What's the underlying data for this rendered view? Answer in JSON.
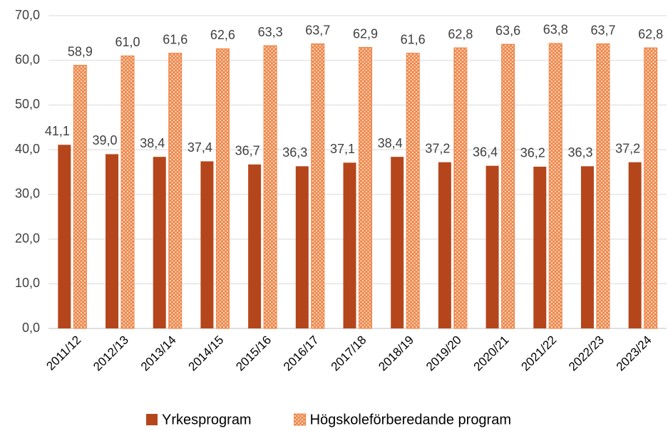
{
  "chart_data": {
    "type": "bar",
    "categories": [
      "2011/12",
      "2012/13",
      "2013/14",
      "2014/15",
      "2015/16",
      "2016/17",
      "2017/18",
      "2018/19",
      "2019/20",
      "2020/21",
      "2021/22",
      "2022/23",
      "2023/24"
    ],
    "series": [
      {
        "name": "Yrkesprogram",
        "color": "#b5461c",
        "pattern": false,
        "values": [
          41.1,
          39.0,
          38.4,
          37.4,
          36.7,
          36.3,
          37.1,
          38.4,
          37.2,
          36.4,
          36.2,
          36.3,
          37.2
        ],
        "value_labels": [
          "41,1",
          "39,0",
          "38,4",
          "37,4",
          "36,7",
          "36,3",
          "37,1",
          "38,4",
          "37,2",
          "36,4",
          "36,2",
          "36,3",
          "37,2"
        ]
      },
      {
        "name": "Högskoleförberedande program",
        "color": "#ef8547",
        "pattern": true,
        "values": [
          58.9,
          61.0,
          61.6,
          62.6,
          63.3,
          63.7,
          62.9,
          61.6,
          62.8,
          63.6,
          63.8,
          63.7,
          62.8
        ],
        "value_labels": [
          "58,9",
          "61,0",
          "61,6",
          "62,6",
          "63,3",
          "63,7",
          "62,9",
          "61,6",
          "62,8",
          "63,6",
          "63,8",
          "63,7",
          "62,8"
        ]
      }
    ],
    "ylim": [
      0,
      70
    ],
    "yticks": [
      {
        "value": 0,
        "label": "0,0"
      },
      {
        "value": 10,
        "label": "10,0"
      },
      {
        "value": 20,
        "label": "20,0"
      },
      {
        "value": 30,
        "label": "30,0"
      },
      {
        "value": 40,
        "label": "40,0"
      },
      {
        "value": 50,
        "label": "50,0"
      },
      {
        "value": 60,
        "label": "60,0"
      },
      {
        "value": 70,
        "label": "70,0"
      }
    ],
    "grid": true,
    "legend": "bottom"
  }
}
